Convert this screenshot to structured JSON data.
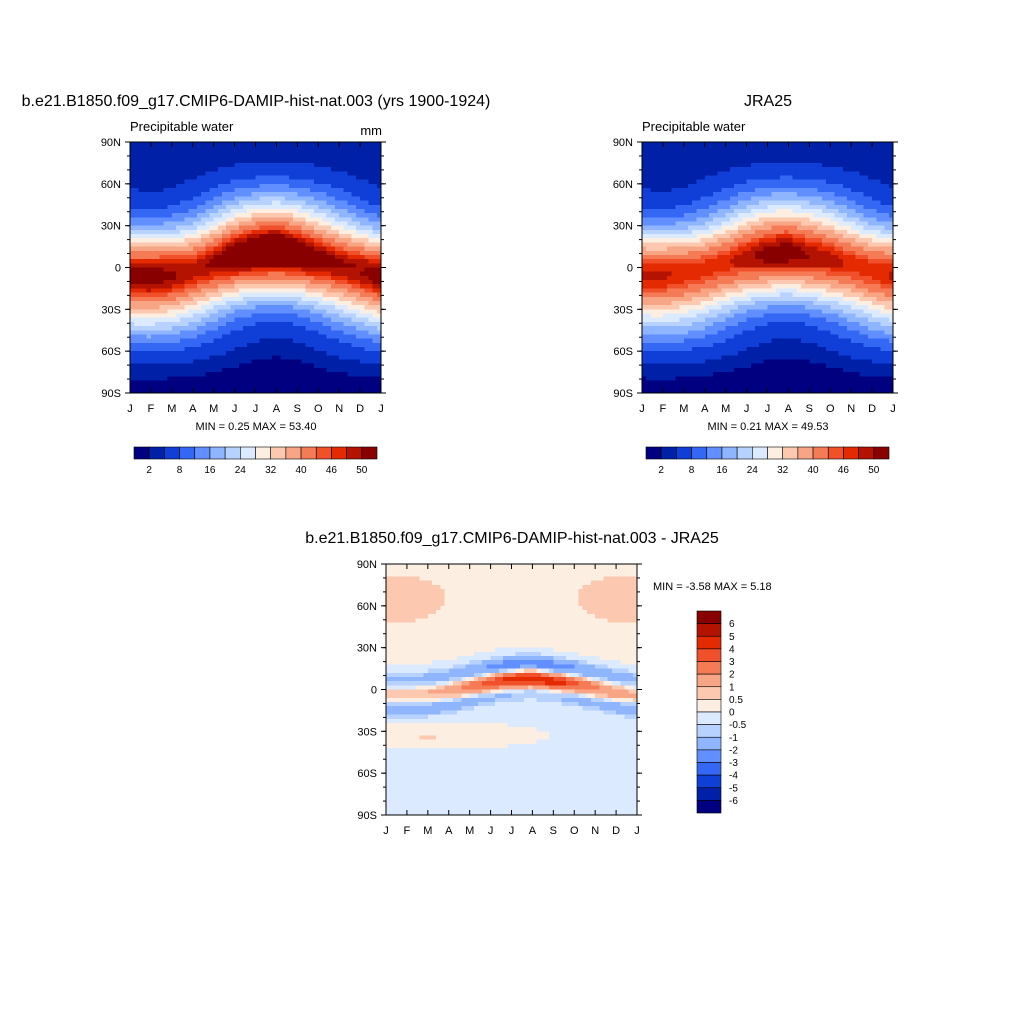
{
  "chart_data": [
    {
      "type": "heatmap",
      "title": "b.e21.B1850.f09_g17.CMIP6-DAMIP-hist-nat.003 (yrs 1900-1924)",
      "subtitle_left": "Precipitable water",
      "units": "mm",
      "x_ticks": [
        "J",
        "F",
        "M",
        "A",
        "M",
        "J",
        "J",
        "A",
        "S",
        "O",
        "N",
        "D",
        "J"
      ],
      "y_ticks": [
        "90N",
        "60N",
        "30N",
        "0",
        "30S",
        "60S",
        "90S"
      ],
      "stats": "MIN =   0.25 MAX =  53.40",
      "min": 0.25,
      "max": 53.4,
      "colorbar_labels": [
        "2",
        "8",
        "16",
        "24",
        "32",
        "40",
        "46",
        "50"
      ],
      "colorbar_levels": [
        2,
        4,
        8,
        12,
        16,
        20,
        24,
        28,
        32,
        36,
        40,
        44,
        46,
        48,
        50
      ],
      "itcz": {
        "lat_by_month": [
          -5,
          -5,
          -4,
          -2,
          2,
          6,
          8,
          9,
          7,
          4,
          1,
          -2,
          -5
        ],
        "peak_by_month": [
          51,
          51,
          50,
          49,
          50,
          52,
          53,
          53,
          52,
          51,
          50,
          50,
          51
        ]
      },
      "pole_n": 2,
      "pole_s": 1
    },
    {
      "type": "heatmap",
      "title": "JRA25",
      "subtitle_left": "Precipitable water",
      "x_ticks": [
        "J",
        "F",
        "M",
        "A",
        "M",
        "J",
        "J",
        "A",
        "S",
        "O",
        "N",
        "D",
        "J"
      ],
      "y_ticks": [
        "90N",
        "60N",
        "30N",
        "0",
        "30S",
        "60S",
        "90S"
      ],
      "stats": "MIN =   0.21 MAX =  49.53",
      "min": 0.21,
      "max": 49.53,
      "colorbar_labels": [
        "2",
        "8",
        "16",
        "24",
        "32",
        "40",
        "46",
        "50"
      ],
      "colorbar_levels": [
        2,
        4,
        8,
        12,
        16,
        20,
        24,
        28,
        32,
        36,
        40,
        44,
        46,
        48,
        50
      ],
      "itcz": {
        "lat_by_month": [
          -4,
          -4,
          -3,
          -1,
          2,
          5,
          7,
          8,
          6,
          4,
          1,
          -2,
          -4
        ],
        "peak_by_month": [
          48,
          48,
          47,
          47,
          47,
          48,
          49,
          49,
          48,
          48,
          47,
          47,
          48
        ]
      },
      "pole_n": 2,
      "pole_s": 1
    },
    {
      "type": "heatmap",
      "title": "b.e21.B1850.f09_g17.CMIP6-DAMIP-hist-nat.003 - JRA25",
      "x_ticks": [
        "J",
        "F",
        "M",
        "A",
        "M",
        "J",
        "J",
        "A",
        "S",
        "O",
        "N",
        "D",
        "J"
      ],
      "y_ticks": [
        "90N",
        "60N",
        "30N",
        "0",
        "30S",
        "60S",
        "90S"
      ],
      "stats": "MIN =  -3.58 MAX =   5.18",
      "min": -3.58,
      "max": 5.18,
      "colorbar_labels": [
        "6",
        "5",
        "4",
        "3",
        "2",
        "1",
        "0.5",
        "0",
        "-0.5",
        "-1",
        "-2",
        "-3",
        "-4",
        "-5",
        "-6"
      ],
      "colorbar_levels": [
        -6,
        -5,
        -4,
        -3,
        -2,
        -1,
        -0.5,
        0,
        0.5,
        1,
        2,
        3,
        4,
        5,
        6
      ],
      "colorbar_colors_top_to_bottom": [
        "#880000",
        "#b31300",
        "#e32a00",
        "#f0502a",
        "#f47b55",
        "#f7a585",
        "#fcc9b0",
        "#fdeee2",
        "#dbeaff",
        "#b7d2ff",
        "#8fb5ff",
        "#628fff",
        "#3567f5",
        "#0f3fd7",
        "#0020a8",
        "#000080"
      ]
    }
  ],
  "colorbar_colors": [
    "#000080",
    "#0020a8",
    "#0f3fd7",
    "#3567f5",
    "#628fff",
    "#8fb5ff",
    "#b7d2ff",
    "#dbeaff",
    "#fdeee2",
    "#fcc9b0",
    "#f7a585",
    "#f47b55",
    "#f0502a",
    "#e32a00",
    "#b31300",
    "#880000"
  ]
}
